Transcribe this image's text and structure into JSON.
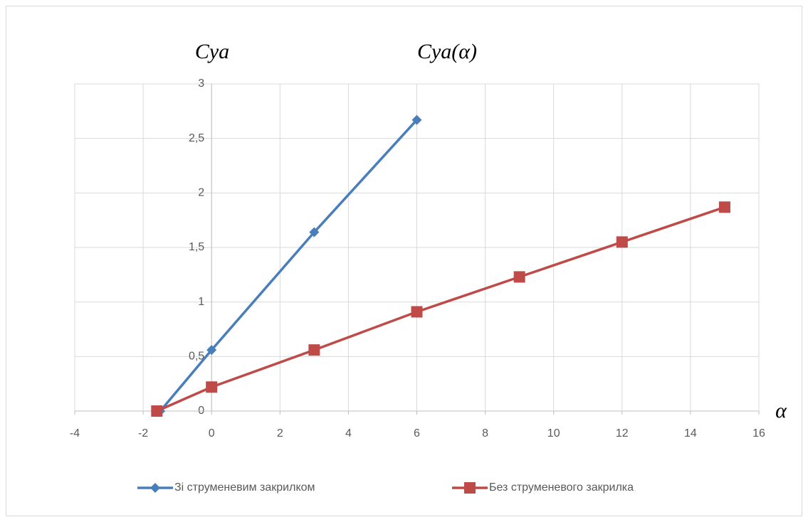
{
  "chart_data": {
    "type": "line",
    "title": "Cya(α)",
    "y_label": "Cya",
    "x_label": "α",
    "xlim": [
      -4,
      16
    ],
    "xticks": [
      -4,
      -2,
      0,
      2,
      4,
      6,
      8,
      10,
      12,
      14,
      16
    ],
    "ylim": [
      0,
      3
    ],
    "yticks": [
      0,
      {
        "value": 0.5,
        "label": "0,5"
      },
      1,
      {
        "value": 1.5,
        "label": "1,5"
      },
      2,
      {
        "value": 2.5,
        "label": "2,5"
      },
      3
    ],
    "grid": true,
    "legend": "bottom",
    "series": [
      {
        "name": "Зі струменевим закрилком",
        "color": "#4a7ebb",
        "marker": "diamond",
        "x": [
          -1.5,
          0,
          3,
          6
        ],
        "values": [
          0,
          0.56,
          1.64,
          2.67
        ]
      },
      {
        "name": "Без струменевого закрилка",
        "color": "#be4b48",
        "marker": "square",
        "x": [
          -1.6,
          0,
          3,
          6,
          9,
          12,
          15
        ],
        "values": [
          0,
          0.22,
          0.56,
          0.91,
          1.23,
          1.55,
          1.87
        ]
      }
    ]
  }
}
